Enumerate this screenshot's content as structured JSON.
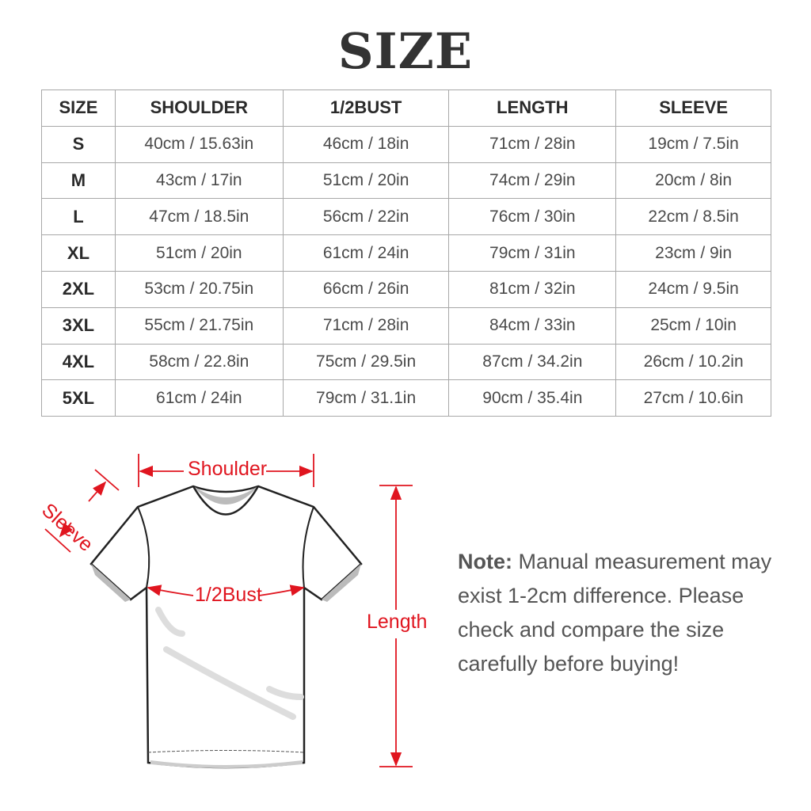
{
  "title": "SIZE",
  "table": {
    "headers": [
      "SIZE",
      "SHOULDER",
      "1/2BUST",
      "LENGTH",
      "SLEEVE"
    ],
    "rows": [
      [
        "S",
        "40cm / 15.63in",
        "46cm / 18in",
        "71cm / 28in",
        "19cm / 7.5in"
      ],
      [
        "M",
        "43cm / 17in",
        "51cm / 20in",
        "74cm / 29in",
        "20cm / 8in"
      ],
      [
        "L",
        "47cm / 18.5in",
        "56cm / 22in",
        "76cm / 30in",
        "22cm / 8.5in"
      ],
      [
        "XL",
        "51cm / 20in",
        "61cm / 24in",
        "79cm / 31in",
        "23cm / 9in"
      ],
      [
        "2XL",
        "53cm / 20.75in",
        "66cm / 26in",
        "81cm / 32in",
        "24cm / 9.5in"
      ],
      [
        "3XL",
        "55cm / 21.75in",
        "71cm / 28in",
        "84cm / 33in",
        "25cm / 10in"
      ],
      [
        "4XL",
        "58cm / 22.8in",
        "75cm / 29.5in",
        "87cm / 34.2in",
        "26cm / 10.2in"
      ],
      [
        "5XL",
        "61cm / 24in",
        "79cm / 31.1in",
        "90cm / 35.4in",
        "27cm / 10.6in"
      ]
    ]
  },
  "diagram": {
    "labels": {
      "shoulder": "Shoulder",
      "sleeve": "Sleeve",
      "bust": "1/2Bust",
      "length": "Length"
    },
    "accent_color": "#e0151f"
  },
  "note": {
    "label": "Note:",
    "text": "Manual measurement may exist 1-2cm difference. Please check and compare the size carefully before buying!"
  }
}
